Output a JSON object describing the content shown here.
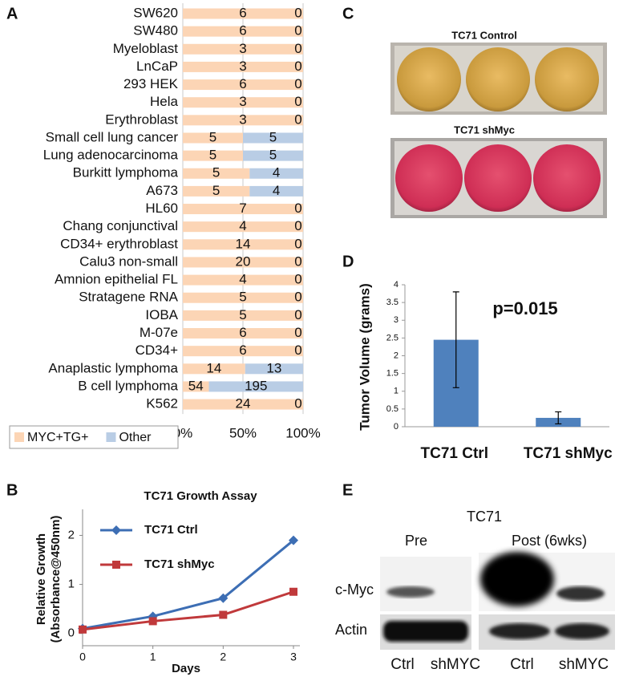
{
  "panel_labels": [
    "A",
    "B",
    "C",
    "D",
    "E"
  ],
  "chart_data": [
    {
      "type": "bar",
      "orientation": "horizontal",
      "stacked": "percent",
      "categories": [
        "SW620",
        "SW480",
        "Myeloblast",
        "LnCaP",
        "293 HEK",
        "Hela",
        "Erythroblast",
        "Small cell lung cancer",
        "Lung adenocarcinoma",
        "Burkitt lymphoma",
        "A673",
        "HL60",
        "Chang conjunctival",
        "CD34+ erythroblast",
        "Calu3 non-small",
        "Amnion epithelial FL",
        "Stratagene RNA",
        "IOBA",
        "M-07e",
        "CD34+",
        "Anaplastic lymphoma",
        "B cell lymphoma",
        "K562"
      ],
      "series": [
        {
          "name": "MYC+TG+",
          "color": "#fcd5b5",
          "values": [
            6,
            6,
            3,
            3,
            6,
            3,
            3,
            5,
            5,
            5,
            5,
            7,
            4,
            14,
            20,
            4,
            5,
            5,
            6,
            6,
            14,
            54,
            24
          ]
        },
        {
          "name": "Other",
          "color": "#b9cde5",
          "values": [
            0,
            0,
            0,
            0,
            0,
            0,
            0,
            5,
            5,
            4,
            4,
            0,
            0,
            0,
            0,
            0,
            0,
            0,
            0,
            0,
            13,
            195,
            0
          ]
        }
      ],
      "xlim": [
        0,
        100
      ],
      "xticks": [
        {
          "value": 0,
          "label": "0%"
        },
        {
          "value": 50,
          "label": "50%"
        },
        {
          "value": 100,
          "label": "100%"
        }
      ],
      "grid": true,
      "legend": "bottom-left"
    },
    {
      "type": "line",
      "title": "TC71 Growth Assay",
      "x": [
        0,
        1,
        2,
        3
      ],
      "xlim": [
        0,
        3
      ],
      "xticks": [
        0,
        1,
        2,
        3
      ],
      "x_label": "Days",
      "y_label": [
        "Relative Growth",
        "(Absorbance@450nm)"
      ],
      "ylim": [
        -0.25,
        2.4
      ],
      "yticks": [
        0,
        1,
        2
      ],
      "series": [
        {
          "name": "TC71 Ctrl",
          "color": "#3d6eb4",
          "marker": "diamond",
          "values": [
            0.1,
            0.35,
            0.72,
            1.9
          ]
        },
        {
          "name": "TC71 shMyc",
          "color": "#c0393b",
          "marker": "square",
          "values": [
            0.08,
            0.25,
            0.38,
            0.85
          ]
        }
      ],
      "legend": "top-left"
    },
    {
      "type": "bar",
      "orientation": "vertical",
      "categories": [
        "TC71 Ctrl",
        "TC71 shMyc"
      ],
      "values": [
        2.45,
        0.25
      ],
      "errors": [
        1.35,
        0.17
      ],
      "color": "#4f81bd",
      "ylim": [
        0,
        4
      ],
      "yticks": [
        0,
        0.5,
        1,
        1.5,
        2,
        2.5,
        3,
        3.5,
        4
      ],
      "y_label": "Tumor Volume  (grams)",
      "annotations": [
        "p=0.015"
      ]
    }
  ],
  "images": {
    "plates": {
      "labels": [
        "TC71 Control",
        "TC71 shMyc"
      ]
    },
    "blot": {
      "title": "TC71",
      "groups": [
        "Pre",
        "Post (6wks)"
      ],
      "rows": [
        "c-Myc",
        "Actin"
      ],
      "lanes": [
        "Ctrl",
        "shMYC",
        "Ctrl",
        "shMYC"
      ]
    }
  }
}
